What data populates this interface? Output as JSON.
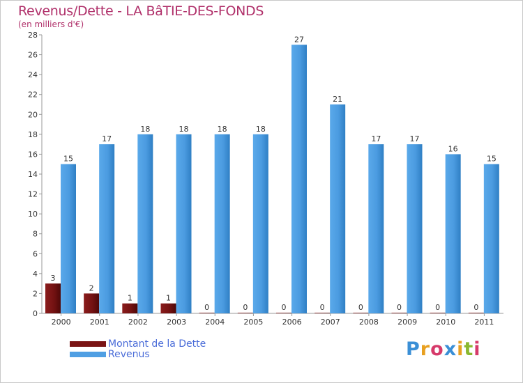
{
  "header": {
    "title": "Revenus/Dette - LA BâTIE-DES-FONDS",
    "subtitle": "(en milliers d'€)"
  },
  "legend": {
    "debt_label": "Montant de la Dette",
    "revenue_label": "Revenus"
  },
  "logo": {
    "letters": [
      "P",
      "r",
      "o",
      "x",
      "i",
      "t",
      "i"
    ],
    "colors": [
      "#3a8fd6",
      "#e8a020",
      "#d63a6a",
      "#3a8fd6",
      "#e8a020",
      "#8ab830",
      "#d63a6a"
    ]
  },
  "colors": {
    "debt": "#7a1414",
    "revenue": "#4f9fe3",
    "title": "#b0306a",
    "legend_text": "#4a6cd8",
    "axis": "#888888"
  },
  "chart_data": {
    "type": "bar",
    "title": "Revenus/Dette - LA BâTIE-DES-FONDS",
    "ylabel": "(en milliers d'€)",
    "xlabel": "",
    "categories": [
      "2000",
      "2001",
      "2002",
      "2003",
      "2004",
      "2005",
      "2006",
      "2007",
      "2008",
      "2009",
      "2010",
      "2011"
    ],
    "series": [
      {
        "name": "Montant de la Dette",
        "values": [
          3,
          2,
          1,
          1,
          0,
          0,
          0,
          0,
          0,
          0,
          0,
          0
        ]
      },
      {
        "name": "Revenus",
        "values": [
          15,
          17,
          18,
          18,
          18,
          18,
          27,
          21,
          17,
          17,
          16,
          15
        ]
      }
    ],
    "ylim": [
      0,
      28
    ],
    "yticks": [
      0,
      2,
      4,
      6,
      8,
      10,
      12,
      14,
      16,
      18,
      20,
      22,
      24,
      26,
      28
    ],
    "grid": false,
    "legend": "bottom-left"
  }
}
